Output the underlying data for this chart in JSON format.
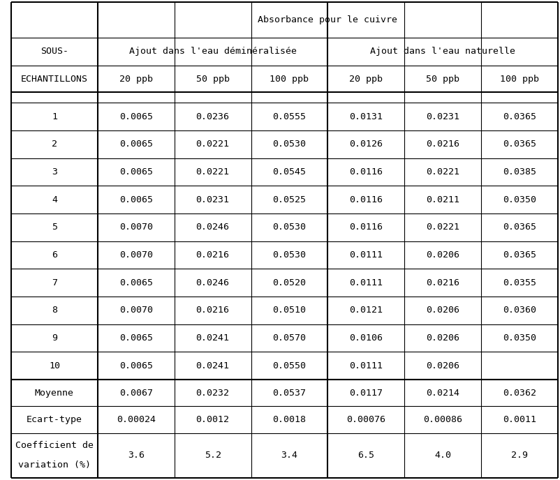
{
  "title": "Absorbance pour le cuivre",
  "col_header_1": "Ajout dans l'eau déminéralisée",
  "col_header_2": "Ajout dans l'eau naturelle",
  "sub_headers": [
    "20 ppb",
    "50 ppb",
    "100 ppb",
    "20 ppb",
    "50 ppb",
    "100 ppb"
  ],
  "rows": [
    [
      "1",
      "0.0065",
      "0.0236",
      "0.0555",
      "0.0131",
      "0.0231",
      "0.0365"
    ],
    [
      "2",
      "0.0065",
      "0.0221",
      "0.0530",
      "0.0126",
      "0.0216",
      "0.0365"
    ],
    [
      "3",
      "0.0065",
      "0.0221",
      "0.0545",
      "0.0116",
      "0.0221",
      "0.0385"
    ],
    [
      "4",
      "0.0065",
      "0.0231",
      "0.0525",
      "0.0116",
      "0.0211",
      "0.0350"
    ],
    [
      "5",
      "0.0070",
      "0.0246",
      "0.0530",
      "0.0116",
      "0.0221",
      "0.0365"
    ],
    [
      "6",
      "0.0070",
      "0.0216",
      "0.0530",
      "0.0111",
      "0.0206",
      "0.0365"
    ],
    [
      "7",
      "0.0065",
      "0.0246",
      "0.0520",
      "0.0111",
      "0.0216",
      "0.0355"
    ],
    [
      "8",
      "0.0070",
      "0.0216",
      "0.0510",
      "0.0121",
      "0.0206",
      "0.0360"
    ],
    [
      "9",
      "0.0065",
      "0.0241",
      "0.0570",
      "0.0106",
      "0.0206",
      "0.0350"
    ],
    [
      "10",
      "0.0065",
      "0.0241",
      "0.0550",
      "0.0111",
      "0.0206",
      ""
    ]
  ],
  "summary_rows": [
    [
      "Moyenne",
      "0.0067",
      "0.0232",
      "0.0537",
      "0.0117",
      "0.0214",
      "0.0362"
    ],
    [
      "Ecart-type",
      "0.00024",
      "0.0012",
      "0.0018",
      "0.00076",
      "0.00086",
      "0.0011"
    ],
    [
      "Coefficient de\nvariation (%)",
      "3.6",
      "5.2",
      "3.4",
      "6.5",
      "4.0",
      "2.9"
    ]
  ],
  "bg_color": "#ffffff",
  "text_color": "#000000",
  "font_family": "monospace",
  "font_size": 9.5
}
